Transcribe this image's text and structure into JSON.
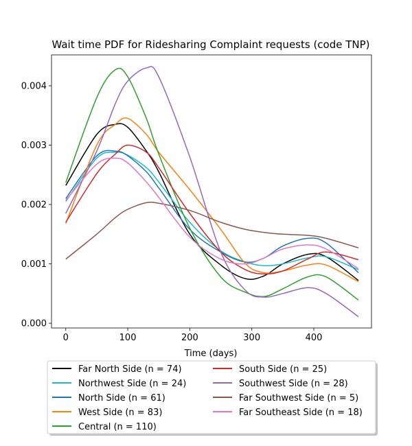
{
  "chart_data": {
    "type": "line",
    "title": "Wait time PDF for Ridesharing Complaint  requests (code TNP)",
    "xlabel": "Time (days)",
    "ylabel": "",
    "xlim": [
      -23,
      493
    ],
    "ylim": [
      -8e-05,
      0.00452
    ],
    "xticks": [
      0,
      100,
      200,
      300,
      400
    ],
    "yticks": [
      0.0,
      0.001,
      0.002,
      0.003,
      0.004
    ],
    "ytick_labels": [
      "0.000",
      "0.001",
      "0.002",
      "0.003",
      "0.004"
    ],
    "x": [
      0,
      50,
      80,
      100,
      130,
      150,
      200,
      250,
      290,
      320,
      350,
      390,
      420,
      472
    ],
    "legend_position": "below-plot",
    "legend_columns": 2,
    "series": [
      {
        "name": "Far North Side (n = 74)",
        "color": "#000000",
        "values": [
          0.00232,
          0.00318,
          0.00335,
          0.0033,
          0.0029,
          0.00255,
          0.0015,
          0.00098,
          0.00075,
          0.0008,
          0.001,
          0.00116,
          0.00112,
          0.00072
        ]
      },
      {
        "name": "Northwest Side (n = 24)",
        "color": "#17becf",
        "values": [
          0.00205,
          0.00278,
          0.00288,
          0.00283,
          0.00262,
          0.00238,
          0.0017,
          0.00122,
          0.00103,
          0.00097,
          0.001,
          0.0011,
          0.00112,
          0.0009
        ]
      },
      {
        "name": "North Side (n = 61)",
        "color": "#1f77b4",
        "values": [
          0.0021,
          0.00282,
          0.0029,
          0.00282,
          0.00255,
          0.00228,
          0.00158,
          0.0012,
          0.00103,
          0.0011,
          0.0013,
          0.00143,
          0.00135,
          0.00085
        ]
      },
      {
        "name": "West Side (n = 83)",
        "color": "#ff7f0e",
        "values": [
          0.00168,
          0.003,
          0.00335,
          0.00345,
          0.00318,
          0.00288,
          0.00225,
          0.00158,
          0.001,
          0.00085,
          0.00088,
          0.00098,
          0.00098,
          0.0007
        ]
      },
      {
        "name": "Central (n = 110)",
        "color": "#2ca02c",
        "values": [
          0.00237,
          0.0038,
          0.00427,
          0.00415,
          0.00345,
          0.00285,
          0.0016,
          0.00078,
          0.00052,
          0.00045,
          0.00058,
          0.00078,
          0.00078,
          0.00039
        ]
      },
      {
        "name": "South Side (n = 25)",
        "color": "#d62728",
        "values": [
          0.0017,
          0.00252,
          0.00285,
          0.003,
          0.00288,
          0.00262,
          0.00185,
          0.0012,
          0.0009,
          0.00083,
          0.00088,
          0.00108,
          0.0012,
          0.00107
        ]
      },
      {
        "name": "Southwest Side (n = 28)",
        "color": "#9467bd",
        "values": [
          0.00185,
          0.0029,
          0.0037,
          0.00408,
          0.0043,
          0.00415,
          0.0028,
          0.0012,
          0.00055,
          0.00044,
          0.0005,
          0.0006,
          0.0005,
          0.00011
        ]
      },
      {
        "name": "Far Southwest Side (n = 5)",
        "color": "#8c564b",
        "values": [
          0.00108,
          0.0015,
          0.00178,
          0.00192,
          0.00203,
          0.00202,
          0.0019,
          0.0017,
          0.00158,
          0.00153,
          0.0015,
          0.00148,
          0.00143,
          0.00127
        ]
      },
      {
        "name": "Far Southeast Side (n = 18)",
        "color": "#e377c2",
        "values": [
          0.00207,
          0.00268,
          0.00278,
          0.0027,
          0.00238,
          0.00212,
          0.00145,
          0.00108,
          0.001,
          0.0011,
          0.00125,
          0.00132,
          0.00125,
          0.00092
        ]
      }
    ]
  }
}
